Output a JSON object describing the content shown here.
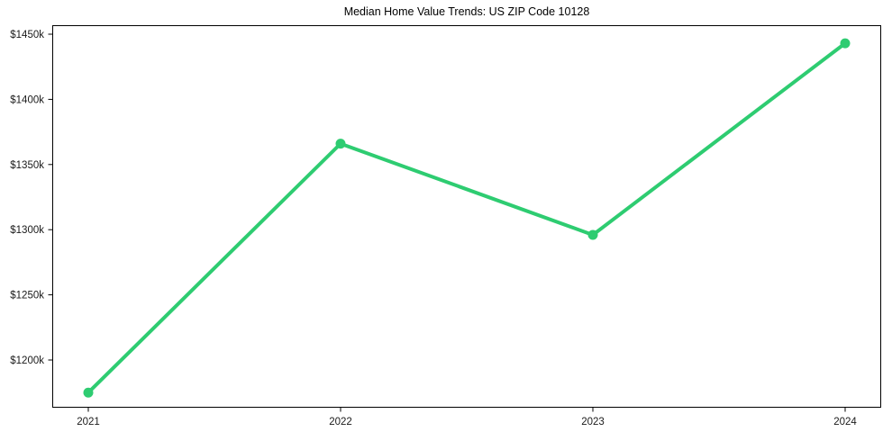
{
  "chart_data": {
    "type": "line",
    "title": "Median Home Value Trends: US ZIP Code 10128",
    "categories": [
      "2021",
      "2022",
      "2023",
      "2024"
    ],
    "values": [
      1175,
      1366,
      1296,
      1443
    ],
    "series": [
      {
        "name": "Median Home Value",
        "values": [
          1175,
          1366,
          1296,
          1443
        ]
      }
    ],
    "value_unit": "thousand USD",
    "yticks": [
      {
        "value": 1200,
        "label": "$1200k"
      },
      {
        "value": 1250,
        "label": "$1250k"
      },
      {
        "value": 1300,
        "label": "$1300k"
      },
      {
        "value": 1350,
        "label": "$1350k"
      },
      {
        "value": 1400,
        "label": "$1400k"
      },
      {
        "value": 1450,
        "label": "$1450k"
      }
    ],
    "ylim": [
      1163.4,
      1456.9
    ],
    "xlabel": "",
    "ylabel": "",
    "grid": false,
    "legend": "none",
    "marker": "circle",
    "line_color": "#2ecc71",
    "marker_color": "#2ecc71",
    "axis_color": "#000000",
    "tick_label_color": "#1a1a1a",
    "background_color": "#ffffff"
  }
}
